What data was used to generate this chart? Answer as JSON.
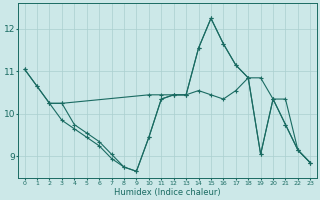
{
  "xlabel": "Humidex (Indice chaleur)",
  "bg_color": "#cce8e8",
  "line_color": "#1a6b62",
  "grid_color": "#aacfcf",
  "xlim": [
    -0.5,
    23.5
  ],
  "ylim": [
    8.5,
    12.6
  ],
  "xticks": [
    0,
    1,
    2,
    3,
    4,
    5,
    6,
    7,
    8,
    9,
    10,
    11,
    12,
    13,
    14,
    15,
    16,
    17,
    18,
    19,
    20,
    21,
    22,
    23
  ],
  "yticks": [
    9,
    10,
    11,
    12
  ],
  "lines": [
    {
      "x": [
        0,
        1,
        2,
        3,
        10,
        11,
        12,
        13,
        14,
        15,
        16,
        17,
        18,
        19,
        20,
        21,
        22,
        23
      ],
      "y": [
        11.05,
        10.65,
        10.25,
        10.25,
        10.45,
        10.45,
        10.45,
        10.45,
        10.55,
        10.45,
        10.35,
        10.55,
        10.85,
        10.85,
        10.35,
        10.35,
        9.15,
        8.85
      ]
    },
    {
      "x": [
        0,
        1,
        2,
        3,
        4,
        5,
        6,
        7,
        8,
        9,
        10,
        11,
        12,
        13,
        14,
        15,
        16,
        17,
        18,
        19,
        20,
        21,
        22,
        23
      ],
      "y": [
        11.05,
        10.65,
        10.25,
        10.25,
        9.75,
        9.55,
        9.35,
        9.05,
        8.75,
        8.65,
        9.45,
        10.35,
        10.45,
        10.45,
        11.55,
        12.25,
        11.65,
        11.15,
        10.85,
        9.05,
        10.35,
        9.75,
        9.15,
        8.85
      ]
    },
    {
      "x": [
        2,
        3,
        4,
        5,
        6,
        7,
        8,
        9,
        10,
        11,
        12,
        13,
        14,
        15,
        16,
        17,
        18,
        19,
        20,
        21,
        22,
        23
      ],
      "y": [
        10.25,
        9.85,
        9.65,
        9.45,
        9.25,
        8.95,
        8.75,
        8.65,
        9.45,
        10.35,
        10.45,
        10.45,
        11.55,
        12.25,
        11.65,
        11.15,
        10.85,
        9.05,
        10.35,
        9.75,
        9.15,
        8.85
      ]
    }
  ]
}
